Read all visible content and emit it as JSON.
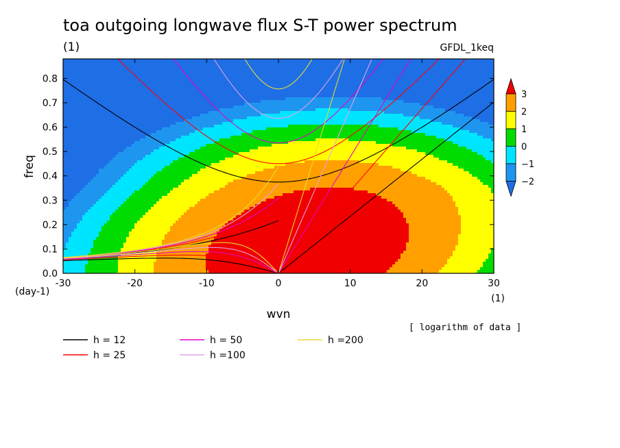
{
  "chart_data": {
    "type": "heatmap",
    "title": "toa outgoing longwave flux S-T power spectrum",
    "subtitle": "(1)",
    "run_label": "GFDL_1keq",
    "xlabel": "wvn",
    "ylabel": "freq",
    "x_unit": "(1)",
    "y_unit": "(day-1)",
    "xlim": [
      -30,
      30
    ],
    "ylim": [
      0,
      0.88
    ],
    "x_ticks": [
      "-30",
      "-20",
      "-10",
      "0",
      "10",
      "20",
      "30"
    ],
    "y_ticks": [
      "0.0",
      "0.1",
      "0.2",
      "0.3",
      "0.4",
      "0.5",
      "0.6",
      "0.7",
      "0.8"
    ],
    "data_note": "[ logarithm of data ]",
    "colorbar": {
      "labels": [
        "3",
        "2",
        "1",
        "0",
        "−1",
        "−2"
      ],
      "levels": [
        -3,
        -2,
        -1,
        0,
        1,
        2,
        3,
        4
      ],
      "colors": [
        "#1e6ee6",
        "#1e96f0",
        "#00e5ff",
        "#00dc00",
        "#ffff00",
        "#ffa000",
        "#f00000"
      ]
    },
    "field": {
      "peak_wvn": 2.5,
      "peak_freq": 0.09,
      "peak_value": 3.75
    },
    "dispersion_curves": [
      {
        "name": "h = 12",
        "h": 12,
        "color": "#000000"
      },
      {
        "name": "h = 25",
        "h": 25,
        "color": "#ff0000"
      },
      {
        "name": "h = 50",
        "h": 50,
        "color": "#e600c8"
      },
      {
        "name": "h =100",
        "h": 100,
        "color": "#e6a0e6"
      },
      {
        "name": "h =200",
        "h": 200,
        "color": "#e6dc32"
      }
    ],
    "grid": false,
    "legend_position": "bottom-left"
  }
}
